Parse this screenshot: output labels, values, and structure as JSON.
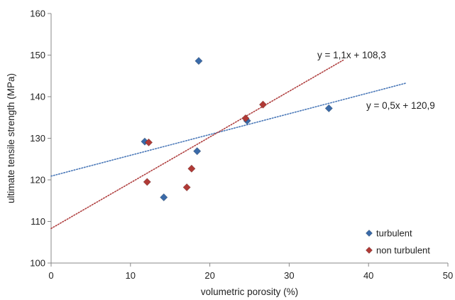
{
  "chart_data": {
    "type": "scatter",
    "title": "",
    "xlabel": "volumetric porosity (%)",
    "ylabel": "ultimate tensile strength (MPa)",
    "xlim": [
      0,
      50
    ],
    "ylim": [
      100,
      160
    ],
    "xticks": [
      0,
      10,
      20,
      30,
      40,
      50
    ],
    "yticks": [
      100,
      110,
      120,
      130,
      140,
      150,
      160
    ],
    "grid": false,
    "legend_position": "bottom-right",
    "series": [
      {
        "name": "turbulent",
        "color": "#3a6aa8",
        "marker": "diamond",
        "points": [
          {
            "x": 11.8,
            "y": 129.2
          },
          {
            "x": 14.2,
            "y": 115.8
          },
          {
            "x": 18.4,
            "y": 126.9
          },
          {
            "x": 18.6,
            "y": 148.6
          },
          {
            "x": 24.7,
            "y": 134.2
          },
          {
            "x": 35.0,
            "y": 137.2
          }
        ],
        "trendline": {
          "slope": 0.5,
          "intercept": 120.9,
          "x_range": [
            0,
            44.7
          ],
          "color": "#4a78b8",
          "label": "y = 0,5x + 120,9"
        }
      },
      {
        "name": "non turbulent",
        "color": "#b03a36",
        "marker": "diamond",
        "points": [
          {
            "x": 12.1,
            "y": 119.5
          },
          {
            "x": 12.3,
            "y": 129.0
          },
          {
            "x": 17.1,
            "y": 118.2
          },
          {
            "x": 17.7,
            "y": 122.7
          },
          {
            "x": 24.5,
            "y": 134.8
          },
          {
            "x": 26.7,
            "y": 138.1
          }
        ],
        "trendline": {
          "slope": 1.1,
          "intercept": 108.3,
          "x_range": [
            0,
            36.8
          ],
          "color": "#b04040",
          "label": "y = 1,1x + 108,3"
        }
      }
    ]
  }
}
